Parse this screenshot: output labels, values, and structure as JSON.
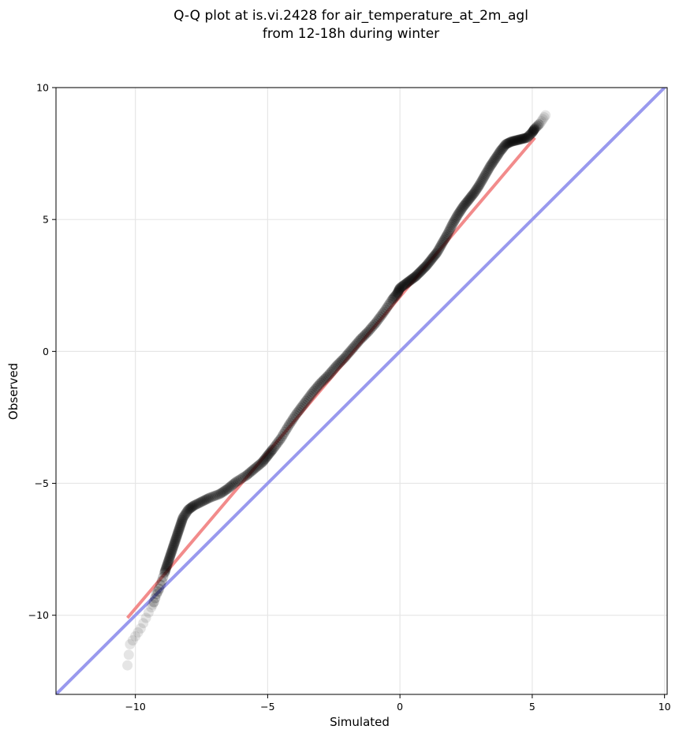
{
  "chart_data": {
    "type": "scatter",
    "title": "Q-Q plot at is.vi.2428 for air_temperature_at_2m_agl",
    "subtitle": "from 12-18h during winter",
    "xlabel": "Simulated",
    "ylabel": "Observed",
    "xlim": [
      -13,
      10.1
    ],
    "ylim": [
      -13,
      10
    ],
    "xticks": [
      -10,
      -5,
      0,
      5,
      10
    ],
    "yticks": [
      -10,
      -5,
      0,
      5,
      10
    ],
    "xtick_labels": [
      "−10",
      "−5",
      "0",
      "5",
      "10"
    ],
    "ytick_labels": [
      "−10",
      "−5",
      "0",
      "5",
      "10"
    ],
    "grid": true,
    "colors": {
      "points": "#000000",
      "fit_line": "#f28b8b",
      "identity_line": "#9999ee"
    },
    "quantile_curve": {
      "x": [
        -10.3,
        -10.2,
        -10.0,
        -9.8,
        -9.6,
        -9.4,
        -9.3,
        -9.2,
        -9.1,
        -9.0,
        -8.9,
        -8.8,
        -8.7,
        -8.6,
        -8.5,
        -8.4,
        -8.3,
        -8.2,
        -8.0,
        -7.8,
        -7.5,
        -7.2,
        -6.8,
        -6.5,
        -6.2,
        -5.8,
        -5.5,
        -5.2,
        -5.0,
        -4.8,
        -4.5,
        -4.2,
        -3.9,
        -3.6,
        -3.3,
        -3.0,
        -2.7,
        -2.4,
        -2.1,
        -1.8,
        -1.5,
        -1.2,
        -0.9,
        -0.6,
        -0.3,
        -0.1,
        0.0,
        0.2,
        0.4,
        0.6,
        0.8,
        1.0,
        1.2,
        1.4,
        1.6,
        1.8,
        2.0,
        2.2,
        2.4,
        2.6,
        2.8,
        3.0,
        3.2,
        3.4,
        3.6,
        3.8,
        4.0,
        4.2,
        4.4,
        4.6,
        4.8,
        5.0,
        5.1,
        5.2,
        5.3,
        5.4,
        5.5
      ],
      "y": [
        -11.9,
        -11.1,
        -10.8,
        -10.5,
        -10.1,
        -9.7,
        -9.5,
        -9.2,
        -9.0,
        -8.7,
        -8.4,
        -8.1,
        -7.8,
        -7.5,
        -7.2,
        -6.9,
        -6.6,
        -6.3,
        -6.0,
        -5.85,
        -5.7,
        -5.55,
        -5.4,
        -5.2,
        -4.95,
        -4.7,
        -4.45,
        -4.2,
        -3.95,
        -3.7,
        -3.3,
        -2.8,
        -2.35,
        -1.95,
        -1.55,
        -1.2,
        -0.9,
        -0.55,
        -0.25,
        0.1,
        0.45,
        0.75,
        1.1,
        1.5,
        1.95,
        2.2,
        2.4,
        2.55,
        2.7,
        2.85,
        3.05,
        3.25,
        3.5,
        3.75,
        4.1,
        4.45,
        4.85,
        5.2,
        5.5,
        5.75,
        6.0,
        6.3,
        6.65,
        7.0,
        7.3,
        7.6,
        7.85,
        7.95,
        8.0,
        8.05,
        8.1,
        8.3,
        8.45,
        8.55,
        8.65,
        8.8,
        8.95
      ]
    },
    "fit_line": {
      "x": [
        -10.3,
        5.1
      ],
      "y": [
        -10.1,
        8.1
      ]
    },
    "identity_line": {
      "x": [
        -13,
        10.1
      ],
      "y": [
        -13,
        10.1
      ]
    }
  }
}
